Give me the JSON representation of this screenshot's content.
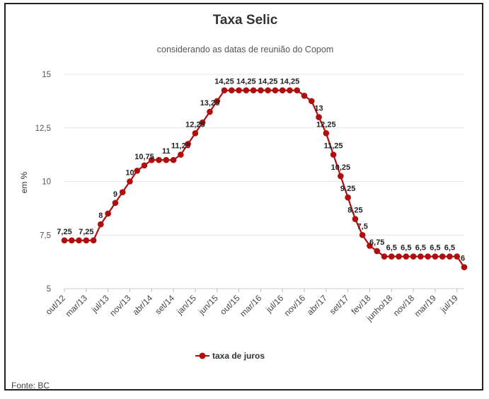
{
  "chart_data": {
    "type": "line",
    "title": "Taxa Selic",
    "subtitle": "considerando as datas de reunião do Copom",
    "ylabel": "em %",
    "ylim": [
      5,
      15
    ],
    "yticks": [
      5,
      7.5,
      10,
      12.5,
      15
    ],
    "ytick_labels": [
      "5",
      "7,5",
      "10",
      "12,5",
      "15"
    ],
    "xtick_labels": [
      "out/12",
      "mar/13",
      "jul/13",
      "nov/13",
      "abr/14",
      "set/14",
      "jan/15",
      "jun/15",
      "out/15",
      "mar/16",
      "jul/16",
      "nov/16",
      "abr/17",
      "set/17",
      "fev/18",
      "junho/18",
      "nov/18",
      "mar/19",
      "jul/19"
    ],
    "xtick_positions": [
      0,
      3,
      6,
      9,
      12,
      15,
      18,
      21,
      24,
      27,
      30,
      33,
      36,
      39,
      42,
      45,
      48,
      51,
      54
    ],
    "series": [
      {
        "name": "taxa de juros",
        "color": "#b00d0d",
        "values": [
          7.25,
          7.25,
          7.25,
          7.25,
          7.25,
          8,
          8.5,
          9,
          9.5,
          10,
          10.5,
          10.75,
          11,
          11,
          11,
          11,
          11.25,
          11.75,
          12.25,
          12.75,
          13.25,
          13.75,
          14.25,
          14.25,
          14.25,
          14.25,
          14.25,
          14.25,
          14.25,
          14.25,
          14.25,
          14.25,
          14.25,
          14,
          13.75,
          13,
          12.25,
          11.25,
          10.25,
          9.25,
          8.25,
          7.5,
          7,
          6.75,
          6.5,
          6.5,
          6.5,
          6.5,
          6.5,
          6.5,
          6.5,
          6.5,
          6.5,
          6.5,
          6.5,
          6
        ]
      }
    ],
    "data_labels": [
      {
        "i": 0,
        "text": "7,25"
      },
      {
        "i": 3,
        "text": "7,25"
      },
      {
        "i": 5,
        "text": "8"
      },
      {
        "i": 7,
        "text": "9"
      },
      {
        "i": 9,
        "text": "10"
      },
      {
        "i": 11,
        "text": "10,75"
      },
      {
        "i": 14,
        "text": "11"
      },
      {
        "i": 16,
        "text": "11,25"
      },
      {
        "i": 18,
        "text": "12,25"
      },
      {
        "i": 20,
        "text": "13,25"
      },
      {
        "i": 22,
        "text": "14,25"
      },
      {
        "i": 25,
        "text": "14,25"
      },
      {
        "i": 28,
        "text": "14,25"
      },
      {
        "i": 31,
        "text": "14,25"
      },
      {
        "i": 35,
        "text": "13"
      },
      {
        "i": 36,
        "text": "12,25"
      },
      {
        "i": 37,
        "text": "11,25"
      },
      {
        "i": 38,
        "text": "10,25"
      },
      {
        "i": 39,
        "text": "9,25"
      },
      {
        "i": 40,
        "text": "8,25"
      },
      {
        "i": 41,
        "text": "7,5"
      },
      {
        "i": 43,
        "text": "6,75"
      },
      {
        "i": 45,
        "text": "6,5"
      },
      {
        "i": 47,
        "text": "6,5"
      },
      {
        "i": 49,
        "text": "6,5"
      },
      {
        "i": 51,
        "text": "6,5"
      },
      {
        "i": 53,
        "text": "6,5"
      },
      {
        "i": 55,
        "text": "6"
      }
    ],
    "legend": "bottom-center",
    "grid": true
  },
  "source_note": "Fonte: BC"
}
